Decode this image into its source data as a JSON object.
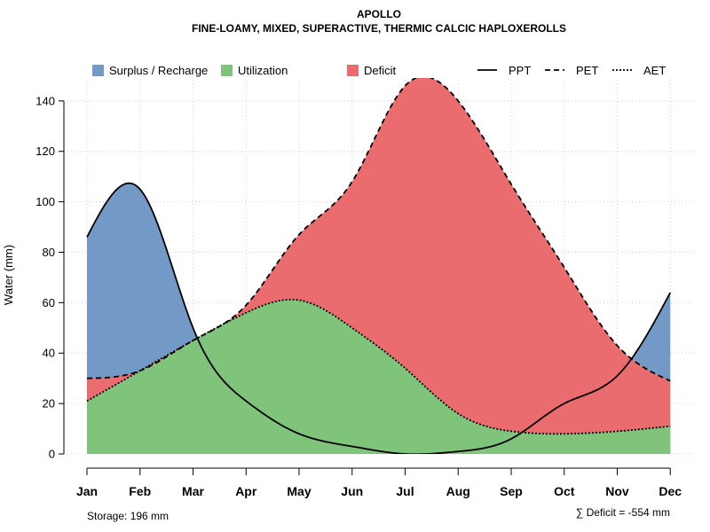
{
  "chart_data": {
    "type": "area",
    "title": "APOLLO",
    "subtitle": "FINE-LOAMY, MIXED, SUPERACTIVE, THERMIC CALCIC HAPLOXEROLLS",
    "xlabel": "",
    "ylabel": "Water (mm)",
    "ylim": [
      0,
      148
    ],
    "yticks": [
      0,
      20,
      40,
      60,
      80,
      100,
      120,
      140
    ],
    "grid": true,
    "categories": [
      "Jan",
      "Feb",
      "Mar",
      "Apr",
      "May",
      "Jun",
      "Jul",
      "Aug",
      "Sep",
      "Oct",
      "Nov",
      "Dec"
    ],
    "series": [
      {
        "name": "PPT",
        "style": "solid",
        "values": [
          86,
          105,
          50,
          21,
          8,
          3,
          0,
          1,
          6,
          20,
          31,
          64
        ]
      },
      {
        "name": "PET",
        "style": "dashed",
        "values": [
          30,
          33,
          45,
          59,
          87,
          108,
          146,
          140,
          107,
          74,
          43,
          29
        ]
      },
      {
        "name": "AET",
        "style": "dotted",
        "values": [
          21,
          33,
          45,
          56,
          61,
          50,
          34,
          16,
          9,
          8,
          9,
          11
        ]
      }
    ],
    "fills": [
      {
        "name": "Surplus / Recharge",
        "color": "#7399c6"
      },
      {
        "name": "Utilization",
        "color": "#7fc47a"
      },
      {
        "name": "Deficit",
        "color": "#ea6c6e"
      }
    ],
    "legend": [
      {
        "label": "Surplus / Recharge",
        "kind": "fill",
        "color": "#7399c6"
      },
      {
        "label": "Utilization",
        "kind": "fill",
        "color": "#7fc47a"
      },
      {
        "label": "Deficit",
        "kind": "fill",
        "color": "#ea6c6e"
      },
      {
        "label": "PPT",
        "kind": "line",
        "style": "solid"
      },
      {
        "label": "PET",
        "kind": "line",
        "style": "dashed"
      },
      {
        "label": "AET",
        "kind": "line",
        "style": "dotted"
      }
    ],
    "legend_position": "top",
    "storage_note": "Storage: 196 mm",
    "deficit_note": "∑ Deficit = -554 mm"
  }
}
